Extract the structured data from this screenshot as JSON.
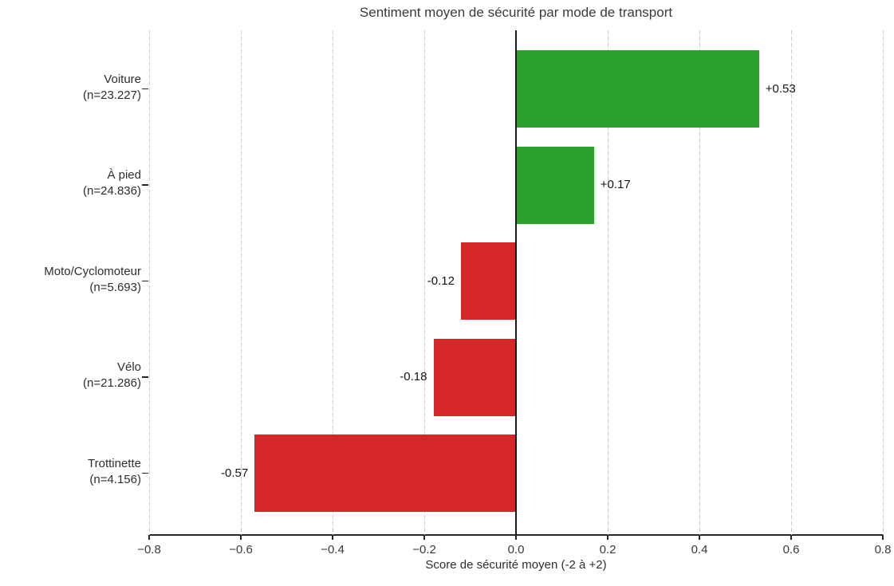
{
  "chart_data": {
    "type": "bar",
    "orientation": "horizontal",
    "title": "Sentiment moyen de sécurité par mode de transport",
    "xlabel": "Score de sécurité moyen (-2 à +2)",
    "xlim": [
      -0.8,
      0.8
    ],
    "xticks": [
      -0.8,
      -0.6,
      -0.4,
      -0.2,
      0.0,
      0.2,
      0.4,
      0.6,
      0.8
    ],
    "xtick_labels": [
      "−0.8",
      "−0.6",
      "−0.4",
      "−0.2",
      "0.0",
      "0.2",
      "0.4",
      "0.6",
      "0.8"
    ],
    "grid": "vertical-dashed",
    "legend": "none",
    "categories": [
      "Voiture",
      "À pied",
      "Moto/Cyclomoteur",
      "Vélo",
      "Trottinette"
    ],
    "category_slugs": [
      "voiture",
      "a-pied",
      "moto-cyclomoteur",
      "velo",
      "trottinette"
    ],
    "category_counts": [
      "(n=23.227)",
      "(n=24.836)",
      "(n=5.693)",
      "(n=21.286)",
      "(n=4.156)"
    ],
    "values": [
      0.53,
      0.17,
      -0.12,
      -0.18,
      -0.57
    ],
    "value_labels": [
      "+0.53",
      "+0.17",
      "-0.12",
      "-0.18",
      "-0.57"
    ],
    "colors": {
      "positive_bar": "#2ca02c",
      "negative_bar": "#d62728",
      "zero_line": "#1a1a1a",
      "gridline": "#cbcbcb",
      "axis": "#262626",
      "text": "#2e2e2e"
    }
  }
}
